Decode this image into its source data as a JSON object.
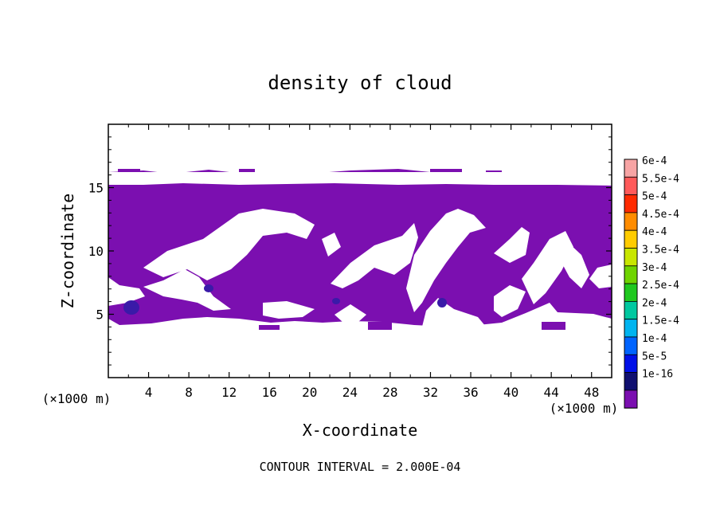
{
  "chart_data": {
    "type": "contour",
    "title": "density of cloud",
    "xlabel": "X-coordinate",
    "ylabel": "Z-coordinate",
    "x_unit_left": "(×1000 m)",
    "x_unit_right": "(×1000 m)",
    "footer": "CONTOUR INTERVAL = 2.000E-04",
    "xlim": [
      0,
      50
    ],
    "ylim": [
      0,
      20
    ],
    "x_ticks": [
      4,
      8,
      12,
      16,
      20,
      24,
      28,
      32,
      36,
      40,
      44,
      48
    ],
    "y_ticks": [
      5,
      10,
      15
    ],
    "fill_color": "#7b0fb0",
    "core_color": "#3a1aa8",
    "cloud_layer": {
      "top_z": 15.9,
      "base_z_min": 4.2,
      "note_values": "density near lowest level (1e-16 to 5e-5)"
    },
    "legend": [
      {
        "label": "6e-4",
        "color": "#f7a4a4"
      },
      {
        "label": "5.5e-4",
        "color": "#ff5a5a"
      },
      {
        "label": "5e-4",
        "color": "#ff2a00"
      },
      {
        "label": "4.5e-4",
        "color": "#ff8c00"
      },
      {
        "label": "4e-4",
        "color": "#ffcc00"
      },
      {
        "label": "3.5e-4",
        "color": "#c8e600"
      },
      {
        "label": "3e-4",
        "color": "#6fd400"
      },
      {
        "label": "2.5e-4",
        "color": "#1fc81f"
      },
      {
        "label": "2e-4",
        "color": "#00c8a0"
      },
      {
        "label": "1.5e-4",
        "color": "#00b4f0"
      },
      {
        "label": "1e-4",
        "color": "#0064ff"
      },
      {
        "label": "5e-5",
        "color": "#0010e8"
      },
      {
        "label": "1e-16",
        "color": "#101070"
      },
      {
        "label": "",
        "color": "#7b0fb0"
      }
    ]
  }
}
